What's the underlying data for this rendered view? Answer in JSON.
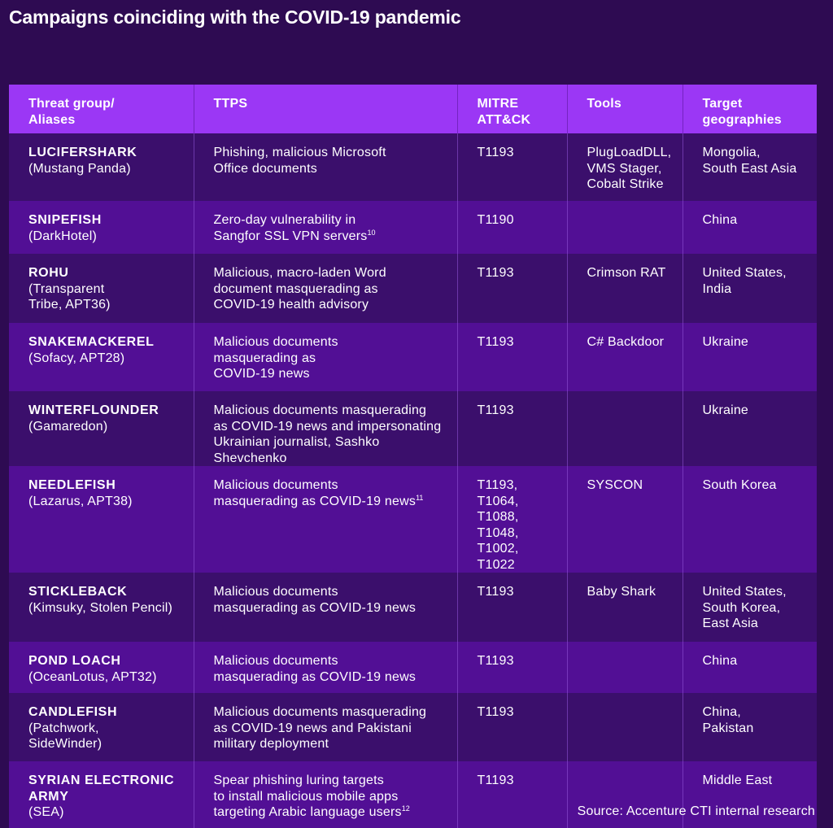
{
  "title": "Campaigns coinciding with the COVID-19 pandemic",
  "table": {
    "headers": {
      "group": [
        "Threat group/",
        "Aliases"
      ],
      "ttps": [
        "TTPS"
      ],
      "mitre": [
        "MITRE",
        "ATT&CK"
      ],
      "tools": [
        "Tools"
      ],
      "geo": [
        "Target",
        "geographies"
      ]
    },
    "rows": [
      {
        "name": "LUCIFERSHARK",
        "alias": [
          "(Mustang Panda)"
        ],
        "ttps": [
          "Phishing, malicious Microsoft",
          "Office documents"
        ],
        "note": "",
        "mitre": [
          "T1193"
        ],
        "tools": [
          "PlugLoadDLL,",
          "VMS Stager,",
          "Cobalt Strike"
        ],
        "geo": [
          "Mongolia,",
          "South East Asia"
        ]
      },
      {
        "name": "SNIPEFISH",
        "alias": [
          "(DarkHotel)"
        ],
        "ttps": [
          "Zero-day vulnerability in",
          "Sangfor SSL VPN servers"
        ],
        "note": "10",
        "mitre": [
          "T1190"
        ],
        "tools": [],
        "geo": [
          "China"
        ]
      },
      {
        "name": "ROHU",
        "alias": [
          "(Transparent",
          "Tribe, APT36)"
        ],
        "ttps": [
          "Malicious, macro-laden Word",
          "document masquerading as",
          "COVID-19 health advisory"
        ],
        "note": "",
        "mitre": [
          "T1193"
        ],
        "tools": [
          "Crimson RAT"
        ],
        "geo": [
          "United States,",
          "India"
        ]
      },
      {
        "name": "SNAKEMACKEREL",
        "alias": [
          "(Sofacy, APT28)"
        ],
        "ttps": [
          "Malicious documents",
          "masquerading as",
          "COVID-19 news"
        ],
        "note": "",
        "mitre": [
          "T1193"
        ],
        "tools": [
          "C# Backdoor"
        ],
        "geo": [
          "Ukraine"
        ]
      },
      {
        "name": "WINTERFLOUNDER",
        "alias": [
          "(Gamaredon)"
        ],
        "ttps": [
          "Malicious documents masquerading",
          "as COVID-19 news and impersonating",
          "Ukrainian journalist, Sashko Shevchenko"
        ],
        "note": "",
        "mitre": [
          "T1193"
        ],
        "tools": [],
        "geo": [
          "Ukraine"
        ]
      },
      {
        "name": "NEEDLEFISH",
        "alias": [
          "(Lazarus, APT38)"
        ],
        "ttps": [
          "Malicious documents",
          "masquerading as COVID-19 news"
        ],
        "note": "11",
        "mitre": [
          "T1193, T1064,",
          "T1088, T1048,",
          "T1002, T1022"
        ],
        "tools": [
          "SYSCON"
        ],
        "geo": [
          "South Korea"
        ]
      },
      {
        "name": "STICKLEBACK",
        "alias": [
          "(Kimsuky, Stolen Pencil)"
        ],
        "ttps": [
          "Malicious documents",
          "masquerading as COVID-19 news"
        ],
        "note": "",
        "mitre": [
          "T1193"
        ],
        "tools": [
          "Baby Shark"
        ],
        "geo": [
          "United States,",
          "South Korea,",
          "East Asia"
        ]
      },
      {
        "name": "POND LOACH",
        "alias": [
          "(OceanLotus, APT32)"
        ],
        "ttps": [
          "Malicious documents",
          "masquerading as COVID-19 news"
        ],
        "note": "",
        "mitre": [
          "T1193"
        ],
        "tools": [],
        "geo": [
          "China"
        ]
      },
      {
        "name": "CANDLEFISH",
        "alias": [
          "(Patchwork,",
          "SideWinder)"
        ],
        "ttps": [
          "Malicious documents masquerading",
          "as COVID-19 news and Pakistani",
          "military deployment"
        ],
        "note": "",
        "mitre": [
          "T1193"
        ],
        "tools": [],
        "geo": [
          "China,",
          "Pakistan"
        ]
      },
      {
        "name": "SYRIAN ELECTRONIC ARMY",
        "alias": [
          "(SEA)"
        ],
        "ttps": [
          "Spear phishing luring targets",
          "to install malicious mobile apps",
          "targeting Arabic language users"
        ],
        "note": "12",
        "mitre": [
          "T1193"
        ],
        "tools": [],
        "geo": [
          "Middle East"
        ]
      }
    ]
  },
  "source": "Source: Accenture CTI internal research"
}
